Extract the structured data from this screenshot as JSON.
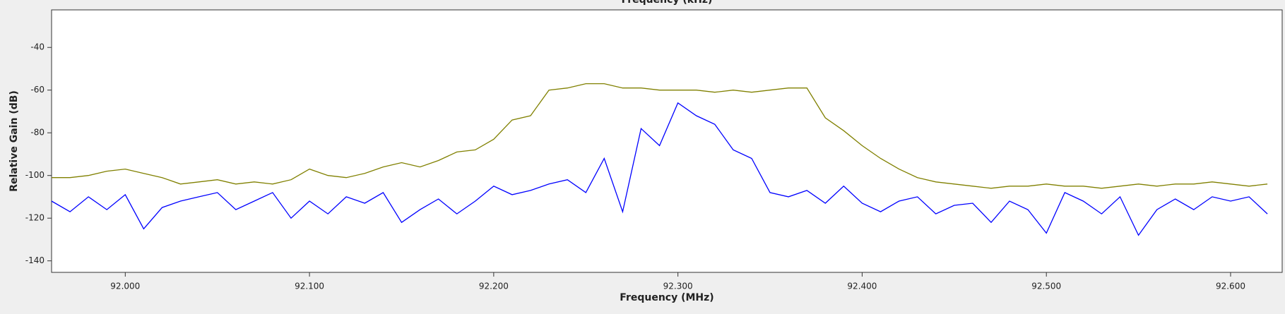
{
  "chart_data": {
    "type": "line",
    "title": "Frequency (kHz)",
    "xlabel": "Frequency (MHz)",
    "ylabel": "Relative Gain (dB)",
    "x": [
      91.96,
      91.97,
      91.98,
      91.99,
      92.0,
      92.01,
      92.02,
      92.03,
      92.04,
      92.05,
      92.06,
      92.07,
      92.08,
      92.09,
      92.1,
      92.11,
      92.12,
      92.13,
      92.14,
      92.15,
      92.16,
      92.17,
      92.18,
      92.19,
      92.2,
      92.21,
      92.22,
      92.23,
      92.24,
      92.25,
      92.26,
      92.27,
      92.28,
      92.29,
      92.3,
      92.31,
      92.32,
      92.33,
      92.34,
      92.35,
      92.36,
      92.37,
      92.38,
      92.39,
      92.4,
      92.41,
      92.42,
      92.43,
      92.44,
      92.45,
      92.46,
      92.47,
      92.48,
      92.49,
      92.5,
      92.51,
      92.52,
      92.53,
      92.54,
      92.55,
      92.56,
      92.57,
      92.58,
      92.59,
      92.6,
      92.61,
      92.62
    ],
    "series": [
      {
        "color": "#808000",
        "values": [
          -101,
          -101,
          -100,
          -98,
          -97,
          -99,
          -101,
          -104,
          -103,
          -102,
          -104,
          -103,
          -104,
          -102,
          -97,
          -100,
          -101,
          -99,
          -96,
          -94,
          -96,
          -93,
          -89,
          -88,
          -83,
          -74,
          -72,
          -60,
          -59,
          -57,
          -57,
          -59,
          -59,
          -60,
          -60,
          -60,
          -61,
          -60,
          -61,
          -60,
          -59,
          -59,
          -73,
          -79,
          -86,
          -92,
          -97,
          -101,
          -103,
          -104,
          -105,
          -106,
          -105,
          -105,
          -104,
          -105,
          -105,
          -106,
          -105,
          -104,
          -105,
          -104,
          -104,
          -103,
          -104,
          -105,
          -104
        ]
      },
      {
        "color": "#0000ff",
        "values": [
          -112,
          -117,
          -110,
          -116,
          -109,
          -125,
          -115,
          -112,
          -110,
          -108,
          -116,
          -112,
          -108,
          -120,
          -112,
          -118,
          -110,
          -113,
          -108,
          -122,
          -116,
          -111,
          -118,
          -112,
          -105,
          -109,
          -107,
          -104,
          -102,
          -108,
          -92,
          -117,
          -78,
          -86,
          -66,
          -72,
          -76,
          -88,
          -92,
          -108,
          -110,
          -107,
          -113,
          -105,
          -113,
          -117,
          -112,
          -110,
          -118,
          -114,
          -113,
          -122,
          -112,
          -116,
          -127,
          -108,
          -112,
          -118,
          -110,
          -128,
          -116,
          -111,
          -116,
          -110,
          -112,
          -110,
          -118
        ]
      }
    ],
    "xlim": [
      91.96,
      92.628
    ],
    "ylim": [
      -145.4,
      -22.4
    ],
    "xticks": [
      {
        "value": 92.0,
        "label": "92.000"
      },
      {
        "value": 92.1,
        "label": "92.100"
      },
      {
        "value": 92.2,
        "label": "92.200"
      },
      {
        "value": 92.3,
        "label": "92.300"
      },
      {
        "value": 92.4,
        "label": "92.400"
      },
      {
        "value": 92.5,
        "label": "92.500"
      },
      {
        "value": 92.6,
        "label": "92.600"
      }
    ],
    "yticks": [
      -140,
      -120,
      -100,
      -80,
      -60,
      -40
    ],
    "grid": false
  }
}
